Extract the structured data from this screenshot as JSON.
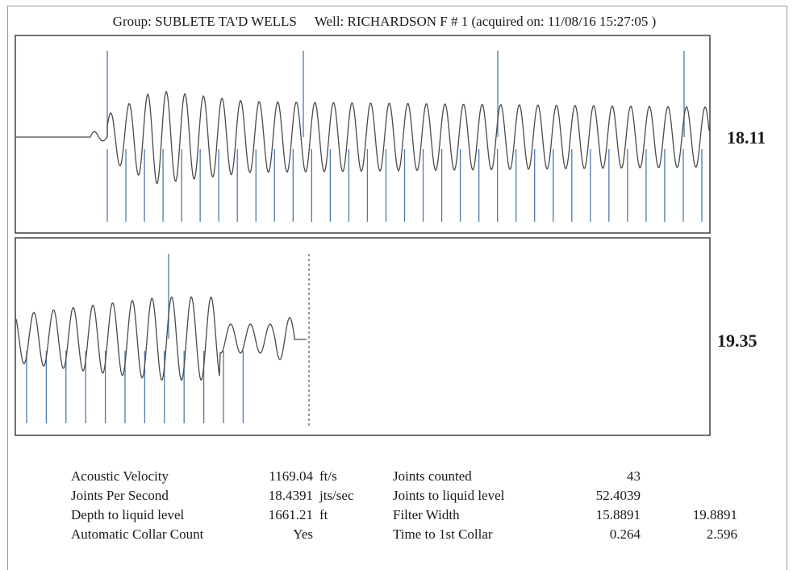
{
  "header": {
    "group_text": "Group: SUBLETE TA'D WELLS",
    "well_text": "Well: RICHARDSON F  # 1 (acquired on: 11/08/16 15:27:05 )"
  },
  "chart_data": [
    {
      "type": "line",
      "panel": "top",
      "scale_label": "18.11",
      "collar_marker_count": 33,
      "tall_marker_count": 4
    },
    {
      "type": "line",
      "panel": "bottom",
      "scale_label": "19.35",
      "collar_marker_count": 12,
      "tall_marker_count": 1,
      "liquid_level_line": "dashed"
    }
  ],
  "stats": {
    "left": [
      {
        "label": "Acoustic Velocity",
        "value": "1169.04",
        "unit": "ft/s"
      },
      {
        "label": "Joints Per Second",
        "value": "18.4391",
        "unit": "jts/sec"
      },
      {
        "label": "Depth to liquid level",
        "value": "1661.21",
        "unit": "ft"
      },
      {
        "label": "Automatic Collar Count",
        "value": "Yes",
        "unit": ""
      }
    ],
    "right": [
      {
        "label": "Joints counted",
        "value": "43",
        "value2": ""
      },
      {
        "label": "Joints to liquid level",
        "value": "52.4039",
        "value2": ""
      },
      {
        "label": "Filter Width",
        "value": "15.8891",
        "value2": "19.8891"
      },
      {
        "label": "Time to 1st Collar",
        "value": "0.264",
        "value2": "2.596"
      }
    ]
  },
  "colors": {
    "trace": "#4a4a4a",
    "marker": "#4a7ab0",
    "border": "#222222"
  }
}
